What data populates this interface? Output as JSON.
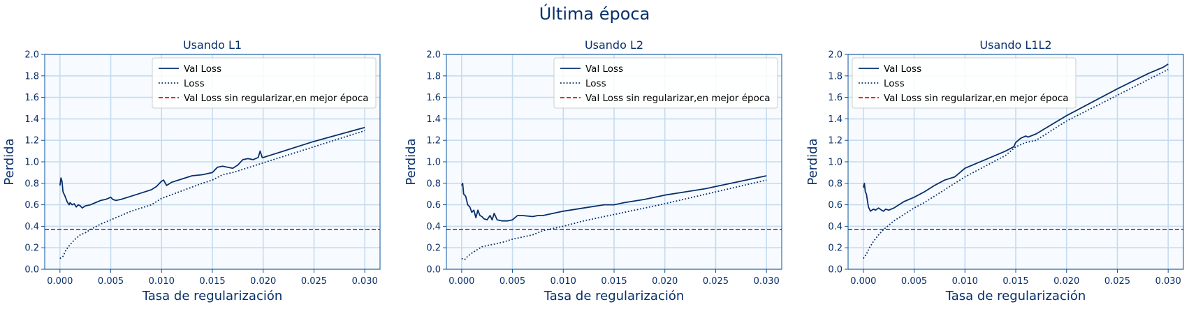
{
  "figure": {
    "suptitle": "Última época",
    "colors": {
      "title": "#08306b",
      "axes_bg": "#f7fbff",
      "grid": "#c6dbef",
      "spine": "#08519c",
      "val_loss": "#08306b",
      "loss": "#08306b",
      "baseline": "#ff0000"
    }
  },
  "chart_data": [
    {
      "type": "line",
      "title": "Usando L1",
      "xlabel": "Tasa de regularización",
      "ylabel": "Perdida",
      "xlim": [
        -0.0015,
        0.0315
      ],
      "ylim": [
        0.0,
        2.0
      ],
      "xticks": [
        0.0,
        0.005,
        0.01,
        0.015,
        0.02,
        0.025,
        0.03
      ],
      "xtick_labels": [
        "0.000",
        "0.005",
        "0.010",
        "0.015",
        "0.020",
        "0.025",
        "0.030"
      ],
      "yticks": [
        0.0,
        0.2,
        0.4,
        0.6,
        0.8,
        1.0,
        1.2,
        1.4,
        1.6,
        1.8,
        2.0
      ],
      "ytick_labels": [
        "0.0",
        "0.2",
        "0.4",
        "0.6",
        "0.8",
        "1.0",
        "1.2",
        "1.4",
        "1.6",
        "1.8",
        "2.0"
      ],
      "grid": true,
      "legend_position": "top-right",
      "hline": {
        "name": "Val Loss sin regularizar,en mejor época",
        "y": 0.37
      },
      "series": [
        {
          "name": "Val Loss",
          "style": "solid",
          "x": [
            0.0,
            0.0001,
            0.0002,
            0.0003,
            0.0005,
            0.0007,
            0.0009,
            0.001,
            0.0012,
            0.0014,
            0.0016,
            0.0018,
            0.002,
            0.0022,
            0.0025,
            0.003,
            0.0035,
            0.004,
            0.0045,
            0.005,
            0.0052,
            0.0055,
            0.006,
            0.007,
            0.008,
            0.009,
            0.0095,
            0.0098,
            0.01,
            0.0102,
            0.0105,
            0.011,
            0.012,
            0.013,
            0.014,
            0.015,
            0.0155,
            0.016,
            0.017,
            0.0175,
            0.018,
            0.0185,
            0.019,
            0.0195,
            0.0197,
            0.0199,
            0.02,
            0.021,
            0.022,
            0.025,
            0.03
          ],
          "y": [
            0.78,
            0.85,
            0.82,
            0.72,
            0.68,
            0.63,
            0.6,
            0.62,
            0.6,
            0.61,
            0.58,
            0.6,
            0.59,
            0.57,
            0.59,
            0.6,
            0.62,
            0.64,
            0.65,
            0.67,
            0.65,
            0.64,
            0.65,
            0.68,
            0.71,
            0.74,
            0.77,
            0.8,
            0.82,
            0.83,
            0.78,
            0.81,
            0.84,
            0.87,
            0.88,
            0.9,
            0.95,
            0.96,
            0.94,
            0.97,
            1.02,
            1.03,
            1.02,
            1.04,
            1.1,
            1.04,
            1.04,
            1.07,
            1.1,
            1.19,
            1.32
          ]
        },
        {
          "name": "Loss",
          "style": "dotted",
          "x": [
            0.0,
            0.0003,
            0.0006,
            0.001,
            0.0015,
            0.002,
            0.0025,
            0.003,
            0.004,
            0.005,
            0.006,
            0.007,
            0.008,
            0.009,
            0.01,
            0.012,
            0.014,
            0.015,
            0.016,
            0.017,
            0.018,
            0.019,
            0.02,
            0.025,
            0.03
          ],
          "y": [
            0.1,
            0.12,
            0.18,
            0.23,
            0.28,
            0.32,
            0.34,
            0.37,
            0.42,
            0.46,
            0.5,
            0.54,
            0.57,
            0.6,
            0.66,
            0.73,
            0.8,
            0.83,
            0.88,
            0.9,
            0.93,
            0.96,
            0.99,
            1.14,
            1.29
          ]
        }
      ]
    },
    {
      "type": "line",
      "title": "Usando L2",
      "xlabel": "Tasa de regularización",
      "ylabel": "Perdida",
      "xlim": [
        -0.0015,
        0.0315
      ],
      "ylim": [
        0.0,
        2.0
      ],
      "xticks": [
        0.0,
        0.005,
        0.01,
        0.015,
        0.02,
        0.025,
        0.03
      ],
      "xtick_labels": [
        "0.000",
        "0.005",
        "0.010",
        "0.015",
        "0.020",
        "0.025",
        "0.030"
      ],
      "yticks": [
        0.0,
        0.2,
        0.4,
        0.6,
        0.8,
        1.0,
        1.2,
        1.4,
        1.6,
        1.8,
        2.0
      ],
      "ytick_labels": [
        "0.0",
        "0.2",
        "0.4",
        "0.6",
        "0.8",
        "1.0",
        "1.2",
        "1.4",
        "1.6",
        "1.8",
        "2.0"
      ],
      "grid": true,
      "legend_position": "top-right",
      "hline": {
        "name": "Val Loss sin regularizar,en mejor época",
        "y": 0.37
      },
      "series": [
        {
          "name": "Val Loss",
          "style": "solid",
          "x": [
            0.0,
            0.0001,
            0.0002,
            0.0004,
            0.0006,
            0.0008,
            0.001,
            0.0012,
            0.0014,
            0.0016,
            0.0018,
            0.002,
            0.0022,
            0.0025,
            0.0028,
            0.003,
            0.0032,
            0.0035,
            0.004,
            0.0045,
            0.005,
            0.0055,
            0.006,
            0.007,
            0.0075,
            0.008,
            0.009,
            0.01,
            0.012,
            0.014,
            0.015,
            0.016,
            0.018,
            0.02,
            0.022,
            0.024,
            0.025,
            0.03
          ],
          "y": [
            0.78,
            0.8,
            0.7,
            0.68,
            0.6,
            0.58,
            0.53,
            0.55,
            0.48,
            0.55,
            0.5,
            0.49,
            0.47,
            0.46,
            0.5,
            0.46,
            0.52,
            0.46,
            0.45,
            0.45,
            0.46,
            0.5,
            0.5,
            0.49,
            0.5,
            0.5,
            0.52,
            0.54,
            0.57,
            0.6,
            0.6,
            0.62,
            0.65,
            0.69,
            0.72,
            0.75,
            0.77,
            0.87
          ]
        },
        {
          "name": "Loss",
          "style": "dotted",
          "x": [
            0.0,
            0.0003,
            0.0006,
            0.001,
            0.0015,
            0.002,
            0.0025,
            0.003,
            0.004,
            0.005,
            0.006,
            0.007,
            0.008,
            0.01,
            0.012,
            0.015,
            0.02,
            0.025,
            0.03
          ],
          "y": [
            0.1,
            0.09,
            0.12,
            0.15,
            0.18,
            0.21,
            0.22,
            0.23,
            0.25,
            0.28,
            0.3,
            0.32,
            0.36,
            0.4,
            0.45,
            0.51,
            0.61,
            0.72,
            0.83
          ]
        }
      ]
    },
    {
      "type": "line",
      "title": "Usando L1L2",
      "xlabel": "Tasa de regularización",
      "ylabel": "Perdida",
      "xlim": [
        -0.0015,
        0.0315
      ],
      "ylim": [
        0.0,
        2.0
      ],
      "xticks": [
        0.0,
        0.005,
        0.01,
        0.015,
        0.02,
        0.025,
        0.03
      ],
      "xtick_labels": [
        "0.000",
        "0.005",
        "0.010",
        "0.015",
        "0.020",
        "0.025",
        "0.030"
      ],
      "yticks": [
        0.0,
        0.2,
        0.4,
        0.6,
        0.8,
        1.0,
        1.2,
        1.4,
        1.6,
        1.8,
        2.0
      ],
      "ytick_labels": [
        "0.0",
        "0.2",
        "0.4",
        "0.6",
        "0.8",
        "1.0",
        "1.2",
        "1.4",
        "1.6",
        "1.8",
        "2.0"
      ],
      "grid": true,
      "legend_position": "top-left",
      "hline": {
        "name": "Val Loss sin regularizar,en mejor época",
        "y": 0.37
      },
      "series": [
        {
          "name": "Val Loss",
          "style": "solid",
          "x": [
            0.0,
            0.0001,
            0.0002,
            0.0003,
            0.0005,
            0.0007,
            0.001,
            0.0012,
            0.0015,
            0.0018,
            0.002,
            0.0022,
            0.0025,
            0.003,
            0.0035,
            0.004,
            0.005,
            0.006,
            0.007,
            0.008,
            0.009,
            0.0095,
            0.01,
            0.012,
            0.014,
            0.0148,
            0.015,
            0.0155,
            0.016,
            0.0162,
            0.017,
            0.02,
            0.025,
            0.028,
            0.0285,
            0.029,
            0.0295,
            0.03
          ],
          "y": [
            0.76,
            0.8,
            0.72,
            0.7,
            0.58,
            0.54,
            0.56,
            0.55,
            0.57,
            0.55,
            0.54,
            0.56,
            0.55,
            0.57,
            0.6,
            0.63,
            0.67,
            0.72,
            0.78,
            0.83,
            0.86,
            0.9,
            0.94,
            1.02,
            1.1,
            1.14,
            1.18,
            1.22,
            1.24,
            1.23,
            1.26,
            1.43,
            1.68,
            1.82,
            1.84,
            1.86,
            1.88,
            1.91
          ]
        },
        {
          "name": "Loss",
          "style": "dotted",
          "x": [
            0.0,
            0.0003,
            0.0006,
            0.001,
            0.0015,
            0.002,
            0.0025,
            0.003,
            0.004,
            0.005,
            0.006,
            0.007,
            0.008,
            0.01,
            0.012,
            0.014,
            0.015,
            0.016,
            0.017,
            0.02,
            0.025,
            0.03
          ],
          "y": [
            0.1,
            0.14,
            0.2,
            0.26,
            0.32,
            0.37,
            0.41,
            0.45,
            0.51,
            0.57,
            0.62,
            0.68,
            0.74,
            0.86,
            0.96,
            1.06,
            1.14,
            1.18,
            1.2,
            1.38,
            1.62,
            1.86
          ]
        }
      ]
    }
  ]
}
